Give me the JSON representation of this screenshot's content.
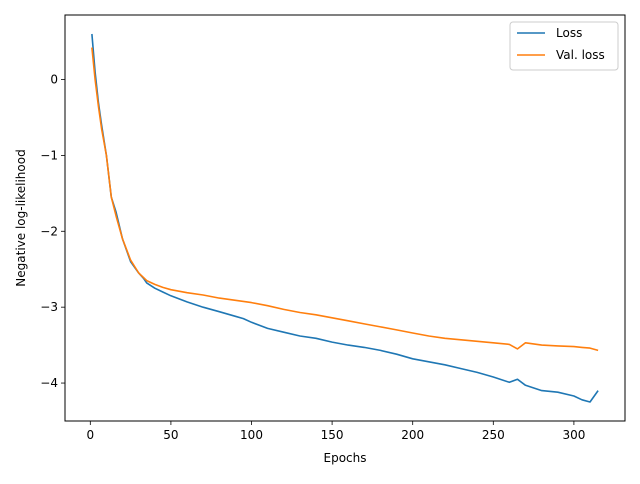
{
  "chart_data": {
    "type": "line",
    "title": "",
    "xlabel": "Epochs",
    "ylabel": "Negative log-likelihood",
    "xlim": [
      -15.7,
      331.7
    ],
    "ylim": [
      -4.5,
      0.85
    ],
    "xticks": [
      0,
      50,
      100,
      150,
      200,
      250,
      300
    ],
    "yticks": [
      -4,
      -3,
      -2,
      -1,
      0
    ],
    "xtick_labels": [
      "0",
      "50",
      "100",
      "150",
      "200",
      "250",
      "300"
    ],
    "ytick_labels": [
      "−4",
      "−3",
      "−2",
      "−1",
      "0"
    ],
    "grid": false,
    "legend_position": "upper-right",
    "series": [
      {
        "name": "Loss",
        "color": "#1f77b4",
        "x": [
          1,
          3,
          5,
          7,
          10,
          13,
          16,
          20,
          25,
          30,
          33,
          35,
          40,
          45,
          50,
          60,
          70,
          80,
          90,
          95,
          100,
          110,
          120,
          130,
          140,
          150,
          160,
          170,
          180,
          190,
          200,
          210,
          220,
          230,
          240,
          250,
          260,
          265,
          270,
          280,
          290,
          300,
          305,
          310,
          315
        ],
        "y": [
          0.6,
          0.1,
          -0.3,
          -0.6,
          -1.0,
          -1.55,
          -1.75,
          -2.1,
          -2.4,
          -2.55,
          -2.62,
          -2.68,
          -2.75,
          -2.8,
          -2.85,
          -2.93,
          -3.0,
          -3.06,
          -3.12,
          -3.15,
          -3.2,
          -3.28,
          -3.33,
          -3.38,
          -3.41,
          -3.46,
          -3.5,
          -3.53,
          -3.57,
          -3.62,
          -3.68,
          -3.72,
          -3.76,
          -3.81,
          -3.86,
          -3.92,
          -3.99,
          -3.95,
          -4.03,
          -4.1,
          -4.12,
          -4.17,
          -4.22,
          -4.25,
          -4.1
        ]
      },
      {
        "name": "Val. loss",
        "color": "#ff7f0e",
        "x": [
          1,
          3,
          5,
          7,
          10,
          13,
          16,
          20,
          25,
          30,
          35,
          40,
          45,
          50,
          60,
          70,
          80,
          90,
          100,
          110,
          120,
          130,
          140,
          150,
          160,
          170,
          180,
          190,
          200,
          210,
          220,
          230,
          240,
          250,
          260,
          265,
          270,
          280,
          290,
          300,
          305,
          310,
          315
        ],
        "y": [
          0.42,
          0.0,
          -0.35,
          -0.65,
          -1.0,
          -1.55,
          -1.8,
          -2.1,
          -2.38,
          -2.55,
          -2.65,
          -2.7,
          -2.74,
          -2.77,
          -2.81,
          -2.84,
          -2.88,
          -2.91,
          -2.94,
          -2.98,
          -3.03,
          -3.07,
          -3.1,
          -3.14,
          -3.18,
          -3.22,
          -3.26,
          -3.3,
          -3.34,
          -3.38,
          -3.41,
          -3.43,
          -3.45,
          -3.47,
          -3.49,
          -3.55,
          -3.47,
          -3.5,
          -3.51,
          -3.52,
          -3.53,
          -3.54,
          -3.57
        ]
      }
    ]
  }
}
